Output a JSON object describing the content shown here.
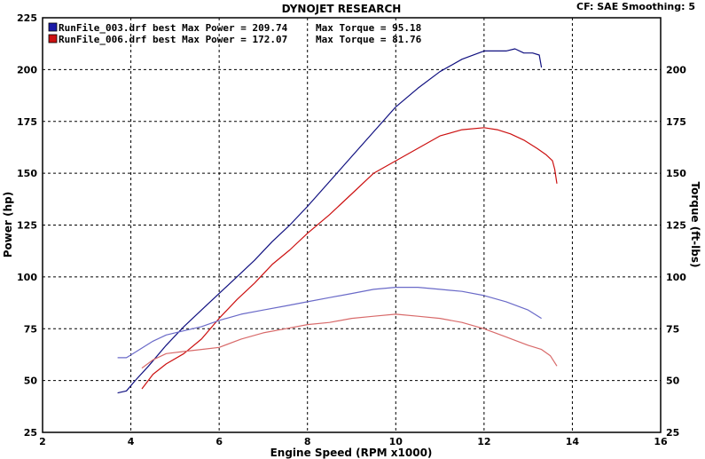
{
  "chart_data": {
    "type": "line",
    "title": "DYNOJET RESEARCH",
    "info": "CF: SAE  Smoothing: 5",
    "xlabel": "Engine Speed (RPM x1000)",
    "ylabel_left": "Power (hp)",
    "ylabel_right": "Torque (ft-lbs)",
    "xlim": [
      2,
      16
    ],
    "ylim": [
      25,
      225
    ],
    "x_ticks": [
      "2",
      "4",
      "6",
      "8",
      "10",
      "12",
      "14",
      "16"
    ],
    "y_ticks": [
      "25",
      "50",
      "75",
      "100",
      "125",
      "150",
      "175",
      "200",
      "225"
    ],
    "y_ticks_right": [
      "25",
      "50",
      "75",
      "100",
      "125",
      "150",
      "175",
      "200"
    ],
    "grid": true,
    "legend": [
      {
        "text": "RunFile_003.drf best Max Power = 209.74",
        "torque_text": "Max Torque = 95.18",
        "color": "#1a1aa8"
      },
      {
        "text": "RunFile_006.drf best Max Power = 172.07",
        "torque_text": "Max Torque = 81.76",
        "color": "#cc1111"
      }
    ],
    "series": [
      {
        "name": "RunFile_003.drf best",
        "kind": "power",
        "color": "#101080",
        "x": [
          3.7,
          3.9,
          4.1,
          4.4,
          4.8,
          5.2,
          5.6,
          6.0,
          6.4,
          6.8,
          7.2,
          7.6,
          8.0,
          8.5,
          9.0,
          9.5,
          10.0,
          10.5,
          11.0,
          11.5,
          12.0,
          12.3,
          12.5,
          12.7,
          12.9,
          13.1,
          13.25,
          13.3
        ],
        "y": [
          44,
          45,
          50,
          57,
          67,
          76,
          84,
          92,
          100,
          108,
          117,
          125,
          134,
          146,
          158,
          170,
          182,
          191,
          199,
          205,
          209,
          209,
          209,
          210,
          208,
          208,
          207,
          201
        ]
      },
      {
        "name": "RunFile_006.drf best",
        "kind": "power",
        "color": "#cc1010",
        "x": [
          4.25,
          4.5,
          4.8,
          5.2,
          5.6,
          6.0,
          6.4,
          6.8,
          7.2,
          7.6,
          8.0,
          8.5,
          9.0,
          9.5,
          10.0,
          10.5,
          11.0,
          11.5,
          12.0,
          12.3,
          12.6,
          12.9,
          13.2,
          13.4,
          13.55,
          13.6,
          13.65
        ],
        "y": [
          46,
          53,
          58,
          63,
          70,
          80,
          89,
          97,
          106,
          113,
          121,
          130,
          140,
          150,
          156,
          162,
          168,
          171,
          172,
          171,
          169,
          166,
          162,
          159,
          156,
          152,
          145
        ]
      },
      {
        "name": "RunFile_003.drf best",
        "kind": "torque",
        "color": "#6a6ac8",
        "x": [
          3.7,
          3.9,
          4.2,
          4.5,
          4.8,
          5.2,
          5.6,
          6.0,
          6.5,
          7.0,
          7.5,
          8.0,
          8.5,
          9.0,
          9.5,
          10.0,
          10.5,
          11.0,
          11.5,
          12.0,
          12.5,
          13.0,
          13.3
        ],
        "y": [
          61,
          61,
          65,
          69,
          72,
          74,
          76,
          79,
          82,
          84,
          86,
          88,
          90,
          92,
          94,
          95,
          95,
          94,
          93,
          91,
          88,
          84,
          80
        ]
      },
      {
        "name": "RunFile_006.drf best",
        "kind": "torque",
        "color": "#d86a6a",
        "x": [
          4.25,
          4.5,
          4.8,
          5.2,
          5.6,
          6.0,
          6.5,
          7.0,
          7.5,
          8.0,
          8.5,
          9.0,
          9.5,
          10.0,
          10.5,
          11.0,
          11.5,
          12.0,
          12.5,
          13.0,
          13.3,
          13.5,
          13.65
        ],
        "y": [
          56,
          60,
          63,
          64,
          65,
          66,
          70,
          73,
          75,
          77,
          78,
          80,
          81,
          82,
          81,
          80,
          78,
          75,
          71,
          67,
          65,
          62,
          57
        ]
      }
    ]
  }
}
